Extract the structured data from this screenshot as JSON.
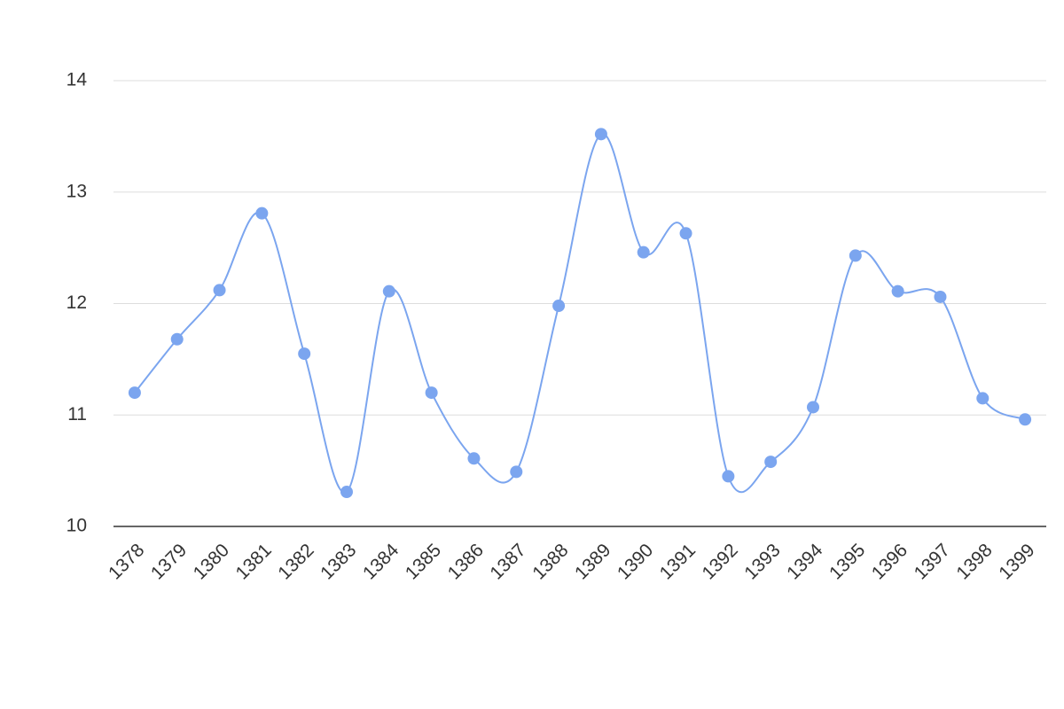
{
  "chart_data": {
    "type": "line",
    "categories": [
      "1378",
      "1379",
      "1380",
      "1381",
      "1382",
      "1383",
      "1384",
      "1385",
      "1386",
      "1387",
      "1388",
      "1389",
      "1390",
      "1391",
      "1392",
      "1393",
      "1394",
      "1395",
      "1396",
      "1397",
      "1398",
      "1399"
    ],
    "values": [
      11.2,
      11.68,
      12.12,
      12.81,
      11.55,
      10.31,
      12.11,
      11.2,
      10.61,
      10.49,
      11.98,
      13.52,
      12.46,
      12.63,
      10.45,
      10.58,
      11.07,
      12.43,
      12.11,
      12.06,
      11.15,
      10.96
    ],
    "color": "#7ba5ef",
    "smooth": true,
    "ylim": [
      10,
      14
    ],
    "yticks": [
      10,
      11,
      12,
      13,
      14
    ],
    "grid": true
  }
}
